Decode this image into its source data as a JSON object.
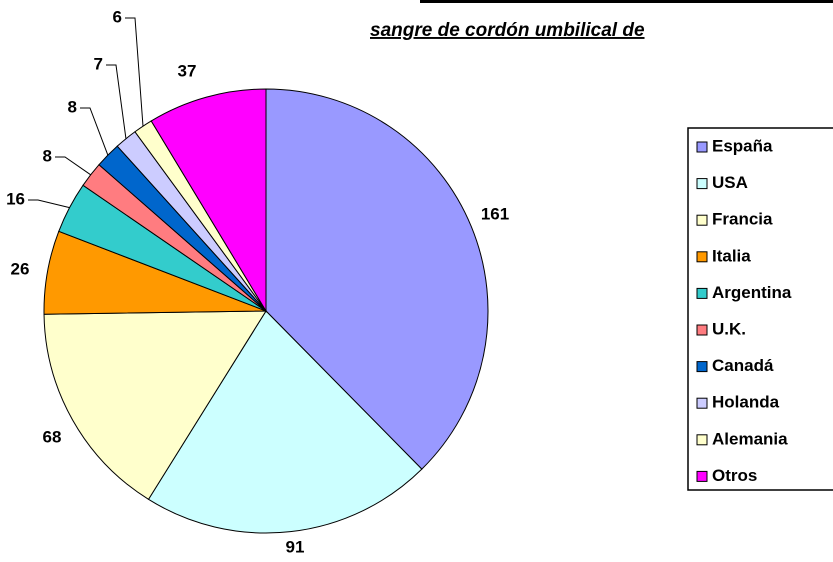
{
  "chart_data": {
    "type": "pie",
    "title": "sangre de cordón umbilical de",
    "categories": [
      "España",
      "USA",
      "Francia",
      "Italia",
      "Argentina",
      "U.K.",
      "Canadá",
      "Holanda",
      "Alemania",
      "Otros"
    ],
    "values": [
      161,
      91,
      68,
      26,
      16,
      8,
      8,
      7,
      6,
      37
    ],
    "colors": [
      "#9999ff",
      "#ccffff",
      "#ffffcc",
      "#ff9900",
      "#33cccc",
      "#ff7c80",
      "#0066cc",
      "#ccccff",
      "#ffffcc",
      "#ff00ff"
    ],
    "legend": "right"
  }
}
